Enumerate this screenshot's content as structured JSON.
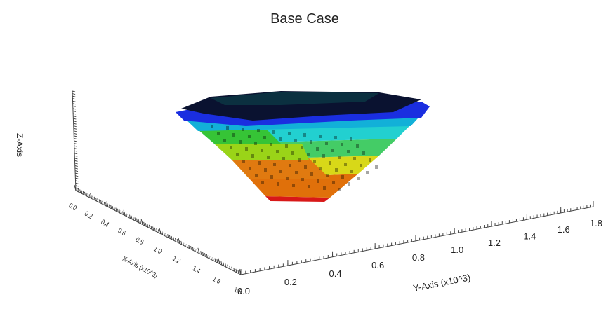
{
  "chart_data": {
    "type": "voxel3d",
    "title": "Base Case",
    "xlabel": "X-Axis (x10^3)",
    "ylabel": "Y-Axis (x10^3)",
    "zlabel": "Z-Axis",
    "xlim": [
      0,
      1.8
    ],
    "ylim": [
      0,
      1.8
    ],
    "xticks": [
      {
        "value": 0,
        "label": "0.0"
      },
      {
        "value": 0.2,
        "label": "0.2"
      },
      {
        "value": 0.4,
        "label": "0.4"
      },
      {
        "value": 0.6,
        "label": "0.6"
      },
      {
        "value": 0.8,
        "label": "0.8"
      },
      {
        "value": 1.0,
        "label": "1.0"
      },
      {
        "value": 1.2,
        "label": "1.2"
      },
      {
        "value": 1.4,
        "label": "1.4"
      },
      {
        "value": 1.6,
        "label": "1.6"
      },
      {
        "value": 1.8,
        "label": "1.8"
      }
    ],
    "yticks": [
      {
        "value": 0,
        "label": "0.0"
      },
      {
        "value": 0.2,
        "label": "0.2"
      },
      {
        "value": 0.4,
        "label": "0.4"
      },
      {
        "value": 0.6,
        "label": "0.6"
      },
      {
        "value": 0.8,
        "label": "0.8"
      },
      {
        "value": 1.0,
        "label": "1.0"
      },
      {
        "value": 1.2,
        "label": "1.2"
      },
      {
        "value": 1.4,
        "label": "1.4"
      },
      {
        "value": 1.6,
        "label": "1.6"
      },
      {
        "value": 1.8,
        "label": "1.8"
      }
    ]
  }
}
